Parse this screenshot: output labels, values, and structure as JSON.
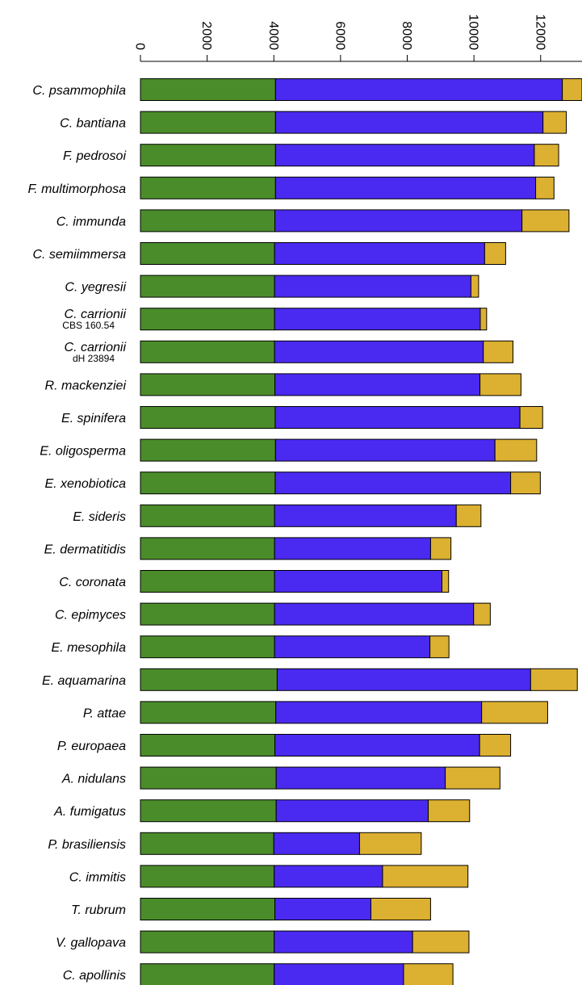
{
  "chart_data": {
    "type": "bar",
    "orientation": "horizontal",
    "stacked": true,
    "categories": [
      {
        "name": "C. psammophila",
        "sub": ""
      },
      {
        "name": "C. bantiana",
        "sub": ""
      },
      {
        "name": "F. pedrosoi",
        "sub": ""
      },
      {
        "name": "F. multimorphosa",
        "sub": ""
      },
      {
        "name": "C. immunda",
        "sub": ""
      },
      {
        "name": "C. semiimmersa",
        "sub": ""
      },
      {
        "name": "C. yegresii",
        "sub": ""
      },
      {
        "name": "C. carrionii",
        "sub": "CBS 160.54"
      },
      {
        "name": "C. carrionii",
        "sub": "dH 23894"
      },
      {
        "name": "R. mackenziei",
        "sub": ""
      },
      {
        "name": "E. spinifera",
        "sub": ""
      },
      {
        "name": "E. oligosperma",
        "sub": ""
      },
      {
        "name": "E. xenobiotica",
        "sub": ""
      },
      {
        "name": "E. sideris",
        "sub": ""
      },
      {
        "name": "E. dermatitidis",
        "sub": ""
      },
      {
        "name": "C. coronata",
        "sub": ""
      },
      {
        "name": "C. epimyces",
        "sub": ""
      },
      {
        "name": "E. mesophila",
        "sub": ""
      },
      {
        "name": "E. aquamarina",
        "sub": ""
      },
      {
        "name": "P. attae",
        "sub": ""
      },
      {
        "name": "P. europaea",
        "sub": ""
      },
      {
        "name": "A. nidulans",
        "sub": ""
      },
      {
        "name": "A. fumigatus",
        "sub": ""
      },
      {
        "name": "P. brasiliensis",
        "sub": ""
      },
      {
        "name": "C. immitis",
        "sub": ""
      },
      {
        "name": "T. rubrum",
        "sub": ""
      },
      {
        "name": "V. gallopava",
        "sub": ""
      },
      {
        "name": "C. apollinis",
        "sub": ""
      }
    ],
    "series": [
      {
        "color": "#4a8c2a",
        "values": [
          4050,
          4050,
          4050,
          4050,
          4030,
          4020,
          4020,
          4020,
          4020,
          4030,
          4040,
          4050,
          4040,
          4020,
          4020,
          4020,
          4020,
          4020,
          4100,
          4060,
          4030,
          4070,
          4070,
          4000,
          4010,
          4030,
          4010,
          4010
        ]
      },
      {
        "color": "#4a2af0",
        "values": [
          8600,
          8020,
          7760,
          7800,
          7410,
          6300,
          5890,
          6170,
          6260,
          6150,
          7340,
          6580,
          7060,
          5450,
          4680,
          5020,
          5970,
          4660,
          7600,
          6170,
          6140,
          5070,
          4560,
          2570,
          3250,
          2880,
          4150,
          3880
        ]
      },
      {
        "color": "#dcb030",
        "values": [
          650,
          700,
          730,
          550,
          1410,
          630,
          230,
          190,
          890,
          1230,
          680,
          1250,
          890,
          740,
          610,
          200,
          500,
          570,
          1400,
          1980,
          930,
          1640,
          1240,
          1850,
          2560,
          1790,
          1690,
          1480
        ]
      }
    ],
    "xlim": [
      0,
      13240
    ],
    "ticks": [
      "0",
      "2000",
      "4000",
      "6000",
      "8000",
      "10000",
      "12000"
    ],
    "grid": false,
    "legend": "none"
  }
}
